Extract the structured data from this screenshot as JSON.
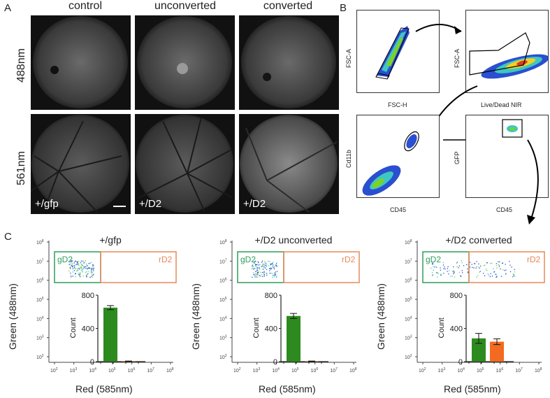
{
  "panels": {
    "a": "A",
    "b": "B",
    "c": "C"
  },
  "panel_a": {
    "columns": [
      "control",
      "unconverted",
      "converted"
    ],
    "rows": [
      "488nm",
      "561nm"
    ],
    "samples": [
      "+/gfp",
      "+/D2",
      "+/D2"
    ]
  },
  "panel_b": {
    "plot1": {
      "x": "FSC-H",
      "y": "FSC-A"
    },
    "plot2": {
      "x": "Live/Dead NIR",
      "y": "FSC-A"
    },
    "plot3": {
      "x": "CD45",
      "y": "Cd11b"
    },
    "plot4": {
      "x": "CD45",
      "y": "GFP"
    }
  },
  "panel_c": {
    "titles": [
      "+/gfp",
      "+/D2 unconverted",
      "+/D2 converted"
    ],
    "xlabel": "Red (585nm)",
    "ylabel": "Green (488nm)",
    "gate_green": "gD2",
    "gate_red": "rD2",
    "log_exponents": [
      "2",
      "3",
      "4",
      "5",
      "6",
      "7",
      "8"
    ],
    "inset_ylabel": "Count",
    "inset_ticks": [
      "0",
      "400",
      "800"
    ],
    "colors": {
      "green": "#2d8a1e",
      "orange": "#f26b21",
      "gate_green": "#2e9d5a",
      "gate_red": "#e8885a"
    }
  },
  "chart_data": [
    {
      "type": "bar",
      "title": "+/gfp",
      "categories": [
        "gD2",
        "rD2"
      ],
      "values": [
        650,
        5
      ],
      "errors": [
        25,
        2
      ],
      "ylabel": "Count",
      "ylim": [
        0,
        800
      ]
    },
    {
      "type": "bar",
      "title": "+/D2 unconverted",
      "categories": [
        "gD2",
        "rD2"
      ],
      "values": [
        550,
        5
      ],
      "errors": [
        30,
        2
      ],
      "ylabel": "Count",
      "ylim": [
        0,
        800
      ]
    },
    {
      "type": "bar",
      "title": "+/D2 converted",
      "categories": [
        "gD2",
        "rD2"
      ],
      "values": [
        280,
        240
      ],
      "errors": [
        60,
        35
      ],
      "ylabel": "Count",
      "ylim": [
        0,
        800
      ]
    }
  ]
}
